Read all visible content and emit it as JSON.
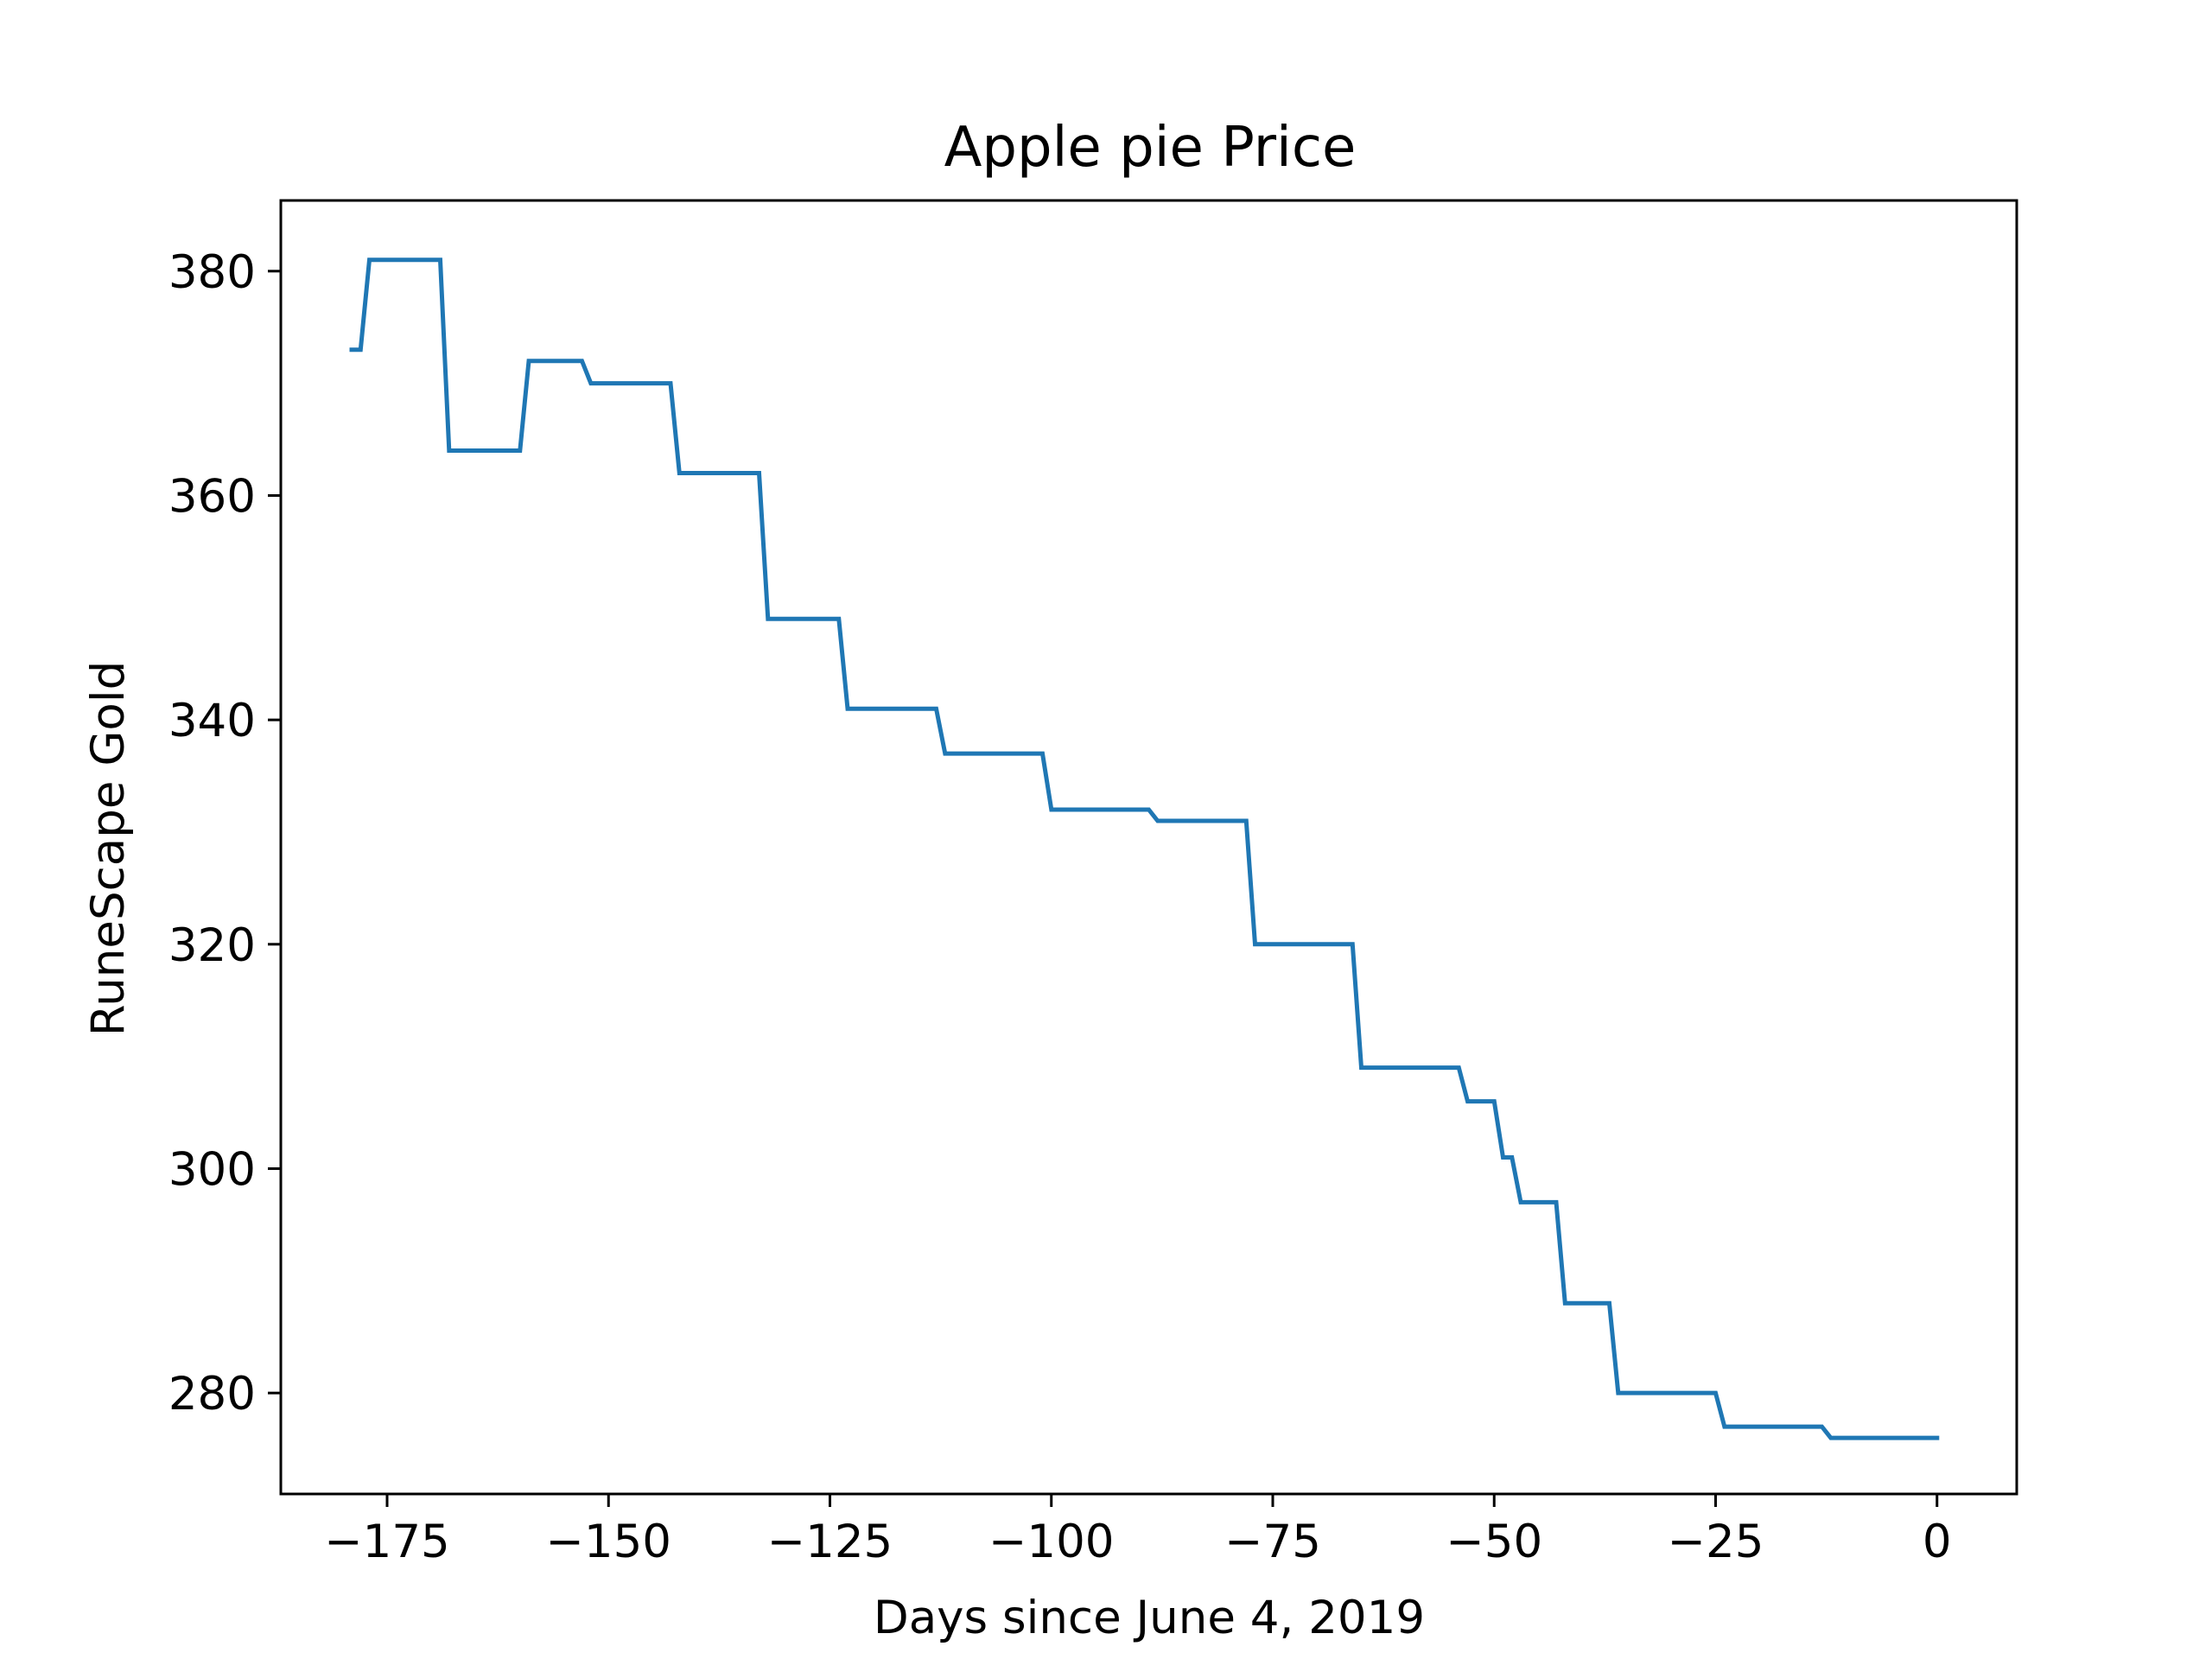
{
  "chart_data": {
    "type": "line",
    "title": "Apple pie Price",
    "xlabel": "Days since June 4, 2019",
    "ylabel": "RuneScape Gold",
    "xlim": [
      -187,
      9
    ],
    "ylim": [
      271,
      386.3
    ],
    "x_ticks": [
      -175,
      -150,
      -125,
      -100,
      -75,
      -50,
      -25,
      0
    ],
    "x_tick_labels": [
      "−175",
      "−150",
      "−125",
      "−100",
      "−75",
      "−50",
      "−25",
      "0"
    ],
    "y_ticks": [
      280,
      300,
      320,
      340,
      360,
      380
    ],
    "y_tick_labels": [
      "280",
      "300",
      "320",
      "340",
      "360",
      "380"
    ],
    "grid": false,
    "legend": "none",
    "series": [
      {
        "color": "#1f77b4",
        "points": [
          [
            -179,
            373
          ],
          [
            -178,
            373
          ],
          [
            -177,
            381
          ],
          [
            -169,
            381
          ],
          [
            -168,
            364
          ],
          [
            -160,
            364
          ],
          [
            -159,
            372
          ],
          [
            -153,
            372
          ],
          [
            -152,
            370
          ],
          [
            -143,
            370
          ],
          [
            -142,
            362
          ],
          [
            -133,
            362
          ],
          [
            -132,
            349
          ],
          [
            -124,
            349
          ],
          [
            -123,
            341
          ],
          [
            -113,
            341
          ],
          [
            -112,
            337
          ],
          [
            -101,
            337
          ],
          [
            -100,
            332
          ],
          [
            -89,
            332
          ],
          [
            -88,
            331
          ],
          [
            -78,
            331
          ],
          [
            -77,
            320
          ],
          [
            -66,
            320
          ],
          [
            -65,
            309
          ],
          [
            -54,
            309
          ],
          [
            -53,
            306
          ],
          [
            -50,
            306
          ],
          [
            -49,
            301
          ],
          [
            -48,
            301
          ],
          [
            -47,
            297
          ],
          [
            -43,
            297
          ],
          [
            -42,
            288
          ],
          [
            -37,
            288
          ],
          [
            -36,
            280
          ],
          [
            -25,
            280
          ],
          [
            -24,
            277
          ],
          [
            -13,
            277
          ],
          [
            -12,
            276
          ],
          [
            0,
            276
          ]
        ]
      }
    ]
  }
}
